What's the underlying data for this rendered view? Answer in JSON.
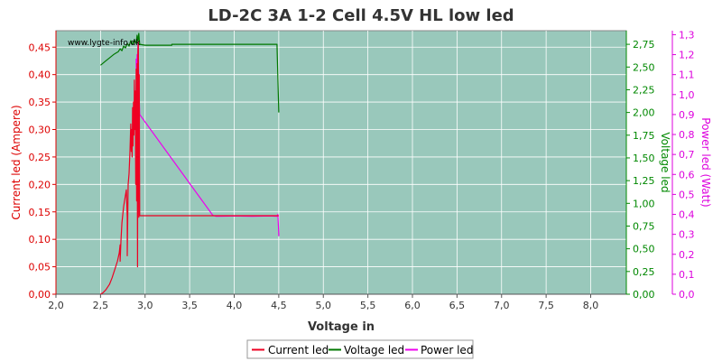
{
  "chart_data": {
    "type": "line",
    "title": "LD-2C 3A 1-2 Cell 4.5V HL low led",
    "watermark": "www.lygte-info.dk",
    "xlabel": "Voltage in",
    "x_ticks": [
      "2,0",
      "2,5",
      "3,0",
      "3,5",
      "4,0",
      "4,5",
      "5,0",
      "5,5",
      "6,0",
      "6,5",
      "7,0",
      "7,5",
      "8,0"
    ],
    "xlim": [
      2.0,
      8.4
    ],
    "y_axes": {
      "current": {
        "label": "Current led (Ampere)",
        "color": "#dd0000",
        "ylim": [
          0,
          0.48
        ],
        "ticks": [
          "0,00",
          "0,05",
          "0,10",
          "0,15",
          "0,20",
          "0,25",
          "0,30",
          "0,35",
          "0,40",
          "0,45"
        ]
      },
      "voltage": {
        "label": "Voltage led",
        "color": "#008800",
        "ylim": [
          0,
          2.9
        ],
        "ticks": [
          "0,00",
          "0,25",
          "0,50",
          "0,75",
          "1,00",
          "1,25",
          "1,50",
          "1,75",
          "2,00",
          "2,25",
          "2,50",
          "2,75"
        ]
      },
      "power": {
        "label": "Power led (Watt)",
        "color": "#dd00dd",
        "ylim": [
          0,
          1.32
        ],
        "ticks": [
          "0,0",
          "0,1",
          "0,2",
          "0,3",
          "0,4",
          "0,5",
          "0,6",
          "0,7",
          "0,8",
          "0,9",
          "1,0",
          "1,1",
          "1,2",
          "1,3"
        ]
      }
    },
    "grid": true,
    "plot_background": "#99c8bb",
    "legend_position": "bottom-center",
    "series": [
      {
        "name": "Current led",
        "axis": "current",
        "color": "#ee0022",
        "points": [
          [
            2.5,
            0.0
          ],
          [
            2.53,
            0.003
          ],
          [
            2.56,
            0.008
          ],
          [
            2.6,
            0.018
          ],
          [
            2.63,
            0.03
          ],
          [
            2.66,
            0.045
          ],
          [
            2.69,
            0.06
          ],
          [
            2.71,
            0.075
          ],
          [
            2.72,
            0.09
          ],
          [
            2.72,
            0.06
          ],
          [
            2.73,
            0.1
          ],
          [
            2.74,
            0.13
          ],
          [
            2.76,
            0.16
          ],
          [
            2.77,
            0.17
          ],
          [
            2.78,
            0.18
          ],
          [
            2.79,
            0.19
          ],
          [
            2.8,
            0.14
          ],
          [
            2.8,
            0.07
          ],
          [
            2.81,
            0.2
          ],
          [
            2.82,
            0.22
          ],
          [
            2.83,
            0.26
          ],
          [
            2.84,
            0.31
          ],
          [
            2.845,
            0.26
          ],
          [
            2.85,
            0.3
          ],
          [
            2.855,
            0.25
          ],
          [
            2.86,
            0.34
          ],
          [
            2.865,
            0.27
          ],
          [
            2.87,
            0.35
          ],
          [
            2.875,
            0.29
          ],
          [
            2.88,
            0.39
          ],
          [
            2.885,
            0.3
          ],
          [
            2.89,
            0.37
          ],
          [
            2.895,
            0.2
          ],
          [
            2.9,
            0.41
          ],
          [
            2.905,
            0.17
          ],
          [
            2.91,
            0.42
          ],
          [
            2.915,
            0.05
          ],
          [
            2.92,
            0.44
          ],
          [
            2.925,
            0.46
          ],
          [
            2.93,
            0.14
          ],
          [
            2.935,
            0.4
          ],
          [
            2.94,
            0.15
          ],
          [
            2.94,
            0.143
          ],
          [
            3.2,
            0.143
          ],
          [
            3.5,
            0.143
          ],
          [
            3.7,
            0.143
          ],
          [
            4.0,
            0.143
          ],
          [
            4.2,
            0.143
          ],
          [
            4.4,
            0.143
          ],
          [
            4.5,
            0.143
          ]
        ]
      },
      {
        "name": "Voltage led",
        "axis": "voltage",
        "color": "#007700",
        "points": [
          [
            2.5,
            2.52
          ],
          [
            2.55,
            2.56
          ],
          [
            2.6,
            2.6
          ],
          [
            2.65,
            2.64
          ],
          [
            2.7,
            2.67
          ],
          [
            2.72,
            2.7
          ],
          [
            2.74,
            2.68
          ],
          [
            2.76,
            2.73
          ],
          [
            2.78,
            2.71
          ],
          [
            2.8,
            2.76
          ],
          [
            2.82,
            2.73
          ],
          [
            2.84,
            2.79
          ],
          [
            2.86,
            2.75
          ],
          [
            2.88,
            2.8
          ],
          [
            2.9,
            2.76
          ],
          [
            2.91,
            2.85
          ],
          [
            2.92,
            2.78
          ],
          [
            2.93,
            2.87
          ],
          [
            2.935,
            2.8
          ],
          [
            2.94,
            2.75
          ],
          [
            3.0,
            2.74
          ],
          [
            3.3,
            2.74
          ],
          [
            3.3,
            2.75
          ],
          [
            3.6,
            2.75
          ],
          [
            4.0,
            2.75
          ],
          [
            4.3,
            2.75
          ],
          [
            4.47,
            2.75
          ],
          [
            4.48,
            2.75
          ],
          [
            4.5,
            2.0
          ]
        ]
      },
      {
        "name": "Power led",
        "axis": "power",
        "color": "#ee00ee",
        "points": [
          [
            2.9,
            1.18
          ],
          [
            2.905,
            0.9
          ],
          [
            2.91,
            1.2
          ],
          [
            2.915,
            0.95
          ],
          [
            2.92,
            1.25
          ],
          [
            2.925,
            1.22
          ],
          [
            2.93,
            1.05
          ],
          [
            2.94,
            0.9
          ],
          [
            3.76,
            0.395
          ],
          [
            3.8,
            0.39
          ],
          [
            4.0,
            0.392
          ],
          [
            4.2,
            0.39
          ],
          [
            4.4,
            0.392
          ],
          [
            4.48,
            0.39
          ],
          [
            4.49,
            0.4
          ],
          [
            4.5,
            0.3
          ],
          [
            4.5,
            0.29
          ]
        ]
      }
    ]
  }
}
